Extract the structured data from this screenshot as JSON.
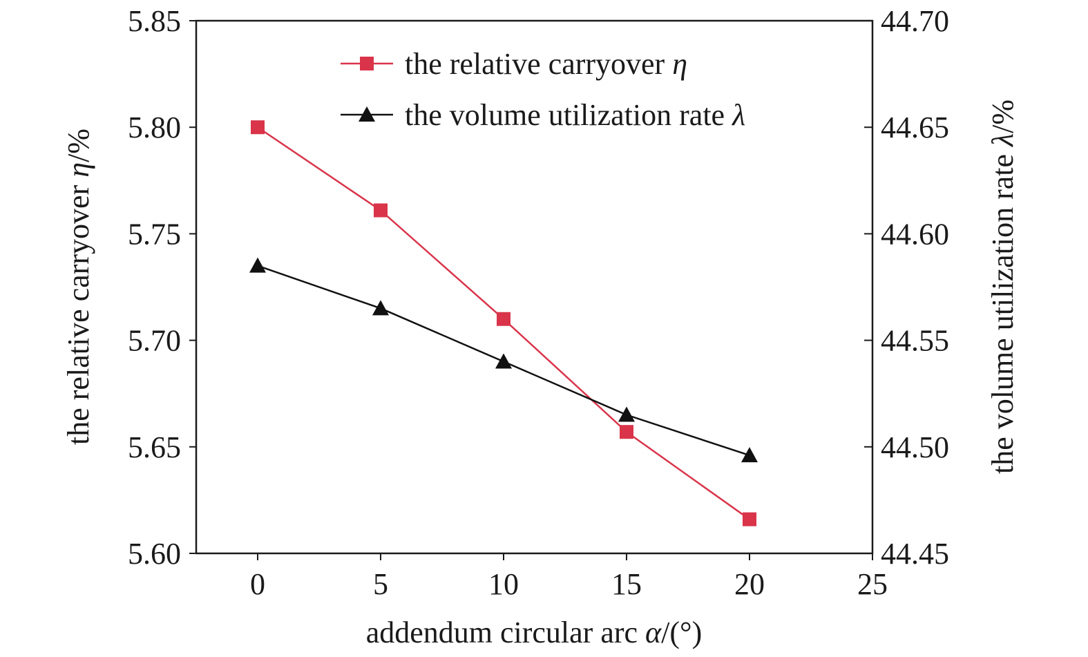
{
  "chart_data": {
    "type": "line",
    "x": [
      0,
      5,
      10,
      15,
      20
    ],
    "xlabel": "addendum circular arc ",
    "xlabel_symbol": "α",
    "xlabel_suffix": "/(°)",
    "xlim": [
      -2.5,
      25
    ],
    "xticks": [
      "0",
      "5",
      "10",
      "15",
      "20",
      "25"
    ],
    "ylabel_left": "the relative carryover ",
    "ylabel_left_symbol": "η",
    "ylabel_left_suffix": "/%",
    "ylim_left": [
      5.6,
      5.85
    ],
    "yticks_left": [
      "5.60",
      "5.65",
      "5.70",
      "5.75",
      "5.80",
      "5.85"
    ],
    "ylabel_right": "the volume utilization rate ",
    "ylabel_right_symbol": "λ",
    "ylabel_right_suffix": "/%",
    "ylim_right": [
      44.45,
      44.7
    ],
    "yticks_right": [
      "44.45",
      "44.50",
      "44.55",
      "44.60",
      "44.65",
      "44.70"
    ],
    "grid": false,
    "legend_position": "top-center",
    "series": [
      {
        "name": "the relative carryover ",
        "symbol": "η",
        "axis": "left",
        "marker": "square",
        "color": "#d9344a",
        "values": [
          5.8,
          5.761,
          5.71,
          5.657,
          5.616
        ]
      },
      {
        "name": "the volume utilization rate ",
        "symbol": "λ",
        "axis": "right",
        "marker": "triangle",
        "color": "#111111",
        "values": [
          44.585,
          44.565,
          44.54,
          44.515,
          44.496
        ]
      }
    ]
  }
}
